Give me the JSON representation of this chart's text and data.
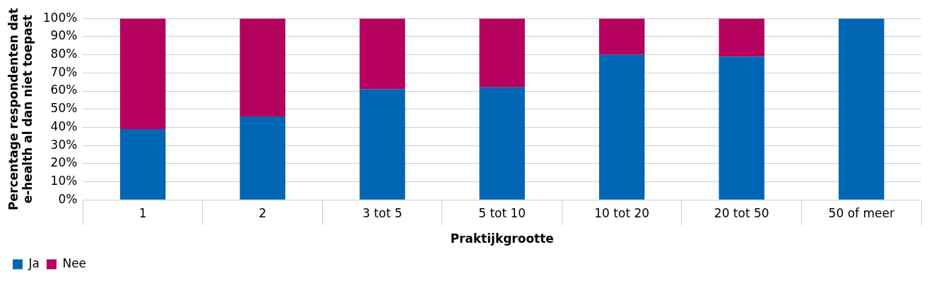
{
  "chart_data": {
    "type": "bar",
    "stacked": true,
    "xlabel": "Praktijkgrootte",
    "ylabel": "Percentage respondenten dat e-health al dan niet toepast",
    "categories": [
      "1",
      "2",
      "3 tot 5",
      "5 tot 10",
      "10 tot 20",
      "20 tot 50",
      "50 of meer"
    ],
    "series": [
      {
        "name": "Ja",
        "color": "#0066b3",
        "values": [
          39,
          46,
          61,
          62,
          80,
          79,
          100
        ]
      },
      {
        "name": "Nee",
        "color": "#b5005f",
        "values": [
          61,
          54,
          39,
          38,
          20,
          21,
          0
        ]
      }
    ],
    "ylim": [
      0,
      100
    ],
    "yticks": [
      {
        "value": 0,
        "label": "0%"
      },
      {
        "value": 10,
        "label": "10%"
      },
      {
        "value": 20,
        "label": "20%"
      },
      {
        "value": 30,
        "label": "30%"
      },
      {
        "value": 40,
        "label": "40%"
      },
      {
        "value": 50,
        "label": "50%"
      },
      {
        "value": 60,
        "label": "60%"
      },
      {
        "value": 70,
        "label": "70%"
      },
      {
        "value": 80,
        "label": "80%"
      },
      {
        "value": 90,
        "label": "90%"
      },
      {
        "value": 100,
        "label": "100%"
      }
    ],
    "grid": "y",
    "legend": "bottom left"
  }
}
